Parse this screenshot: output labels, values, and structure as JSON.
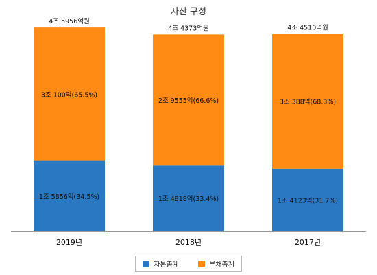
{
  "chart_data": {
    "type": "bar",
    "stacked": true,
    "title": "자산 구성",
    "unit": "억원",
    "categories": [
      "2019년",
      "2018년",
      "2017년"
    ],
    "totals": [
      45956,
      44373,
      44510
    ],
    "total_labels": [
      "4조 5956억원",
      "4조 4373억원",
      "4조 4510억원"
    ],
    "series": [
      {
        "name": "자본총계",
        "color": "#2a78c2",
        "values": [
          15856,
          14818,
          14123
        ],
        "labels": [
          "1조 5856억(34.5%)",
          "1조 4818억(33.4%)",
          "1조 4123억(31.7%)"
        ]
      },
      {
        "name": "부채총계",
        "color": "#ff8a14",
        "values": [
          30100,
          29555,
          30388
        ],
        "labels": [
          "3조 100억(65.5%)",
          "2조 9555억(66.6%)",
          "3조 388억(68.3%)"
        ]
      }
    ],
    "ylim": [
      0,
      50000
    ],
    "grid": false,
    "legend_position": "bottom"
  }
}
